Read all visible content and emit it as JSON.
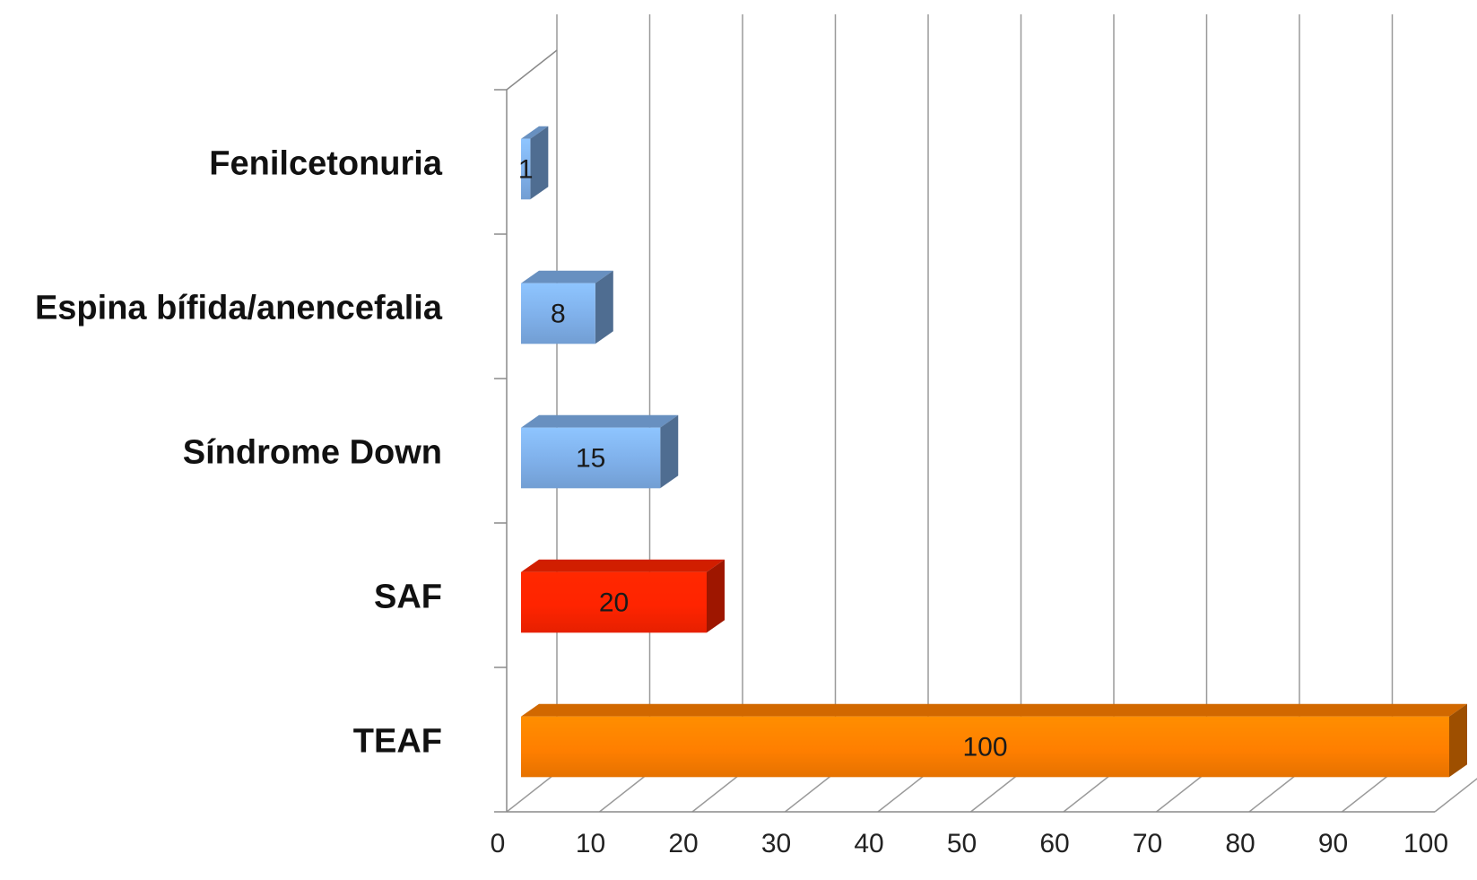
{
  "chart_data": {
    "type": "bar",
    "orientation": "horizontal",
    "style": "3d",
    "categories": [
      "TEAF",
      "SAF",
      "Síndrome Down",
      "Espina bífida/anencefalia",
      "Fenilcetonuria"
    ],
    "values": [
      100,
      20,
      15,
      8,
      1
    ],
    "colors": [
      "#ff7f00",
      "#ff2400",
      "#7fb0ea",
      "#7fb0ea",
      "#7fb0ea"
    ],
    "xlim": [
      0,
      100
    ],
    "xticks": [
      0,
      10,
      20,
      30,
      40,
      50,
      60,
      70,
      80,
      90,
      100
    ],
    "grid": true,
    "legend": "none",
    "title": "",
    "xlabel": "",
    "ylabel": ""
  }
}
